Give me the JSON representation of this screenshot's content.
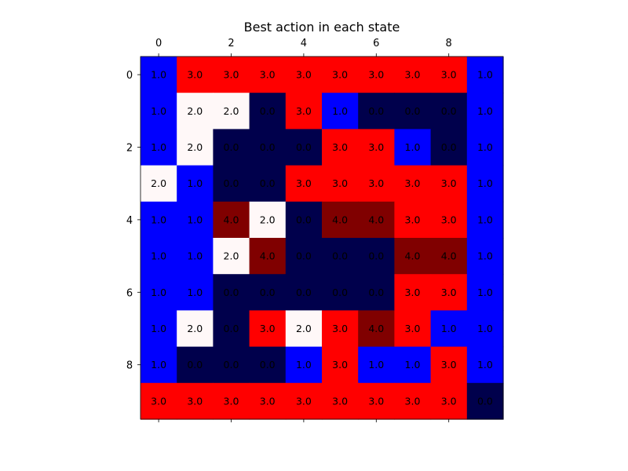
{
  "chart_data": {
    "type": "heatmap",
    "title": "Best action in each state",
    "xlabel": "",
    "ylabel": "",
    "x_tick_labels": [
      "0",
      "2",
      "4",
      "6",
      "8"
    ],
    "y_tick_labels": [
      "0",
      "2",
      "4",
      "6",
      "8"
    ],
    "x_ticks": [
      0,
      2,
      4,
      6,
      8
    ],
    "y_ticks": [
      0,
      2,
      4,
      6,
      8
    ],
    "x_axis_position": "top-and-bottom",
    "grid": false,
    "colormap": "seismic",
    "value_range": [
      0.0,
      4.0
    ],
    "value_colors": {
      "0.0": "#00004c",
      "1.0": "#0000ff",
      "2.0": "#fff8f8",
      "3.0": "#ff0000",
      "4.0": "#800000"
    },
    "text_color": "#000000",
    "values": [
      [
        1.0,
        3.0,
        3.0,
        3.0,
        3.0,
        3.0,
        3.0,
        3.0,
        3.0,
        1.0
      ],
      [
        1.0,
        2.0,
        2.0,
        0.0,
        3.0,
        1.0,
        0.0,
        0.0,
        0.0,
        1.0
      ],
      [
        1.0,
        2.0,
        0.0,
        0.0,
        0.0,
        3.0,
        3.0,
        1.0,
        0.0,
        1.0
      ],
      [
        2.0,
        1.0,
        0.0,
        0.0,
        3.0,
        3.0,
        3.0,
        3.0,
        3.0,
        1.0
      ],
      [
        1.0,
        1.0,
        4.0,
        2.0,
        0.0,
        4.0,
        4.0,
        3.0,
        3.0,
        1.0
      ],
      [
        1.0,
        1.0,
        2.0,
        4.0,
        0.0,
        0.0,
        0.0,
        4.0,
        4.0,
        1.0
      ],
      [
        1.0,
        1.0,
        0.0,
        0.0,
        0.0,
        0.0,
        0.0,
        3.0,
        3.0,
        1.0
      ],
      [
        1.0,
        2.0,
        0.0,
        3.0,
        2.0,
        3.0,
        4.0,
        3.0,
        1.0,
        1.0
      ],
      [
        1.0,
        0.0,
        0.0,
        0.0,
        1.0,
        3.0,
        1.0,
        1.0,
        3.0,
        1.0
      ],
      [
        3.0,
        3.0,
        3.0,
        3.0,
        3.0,
        3.0,
        3.0,
        3.0,
        3.0,
        0.0
      ]
    ]
  }
}
